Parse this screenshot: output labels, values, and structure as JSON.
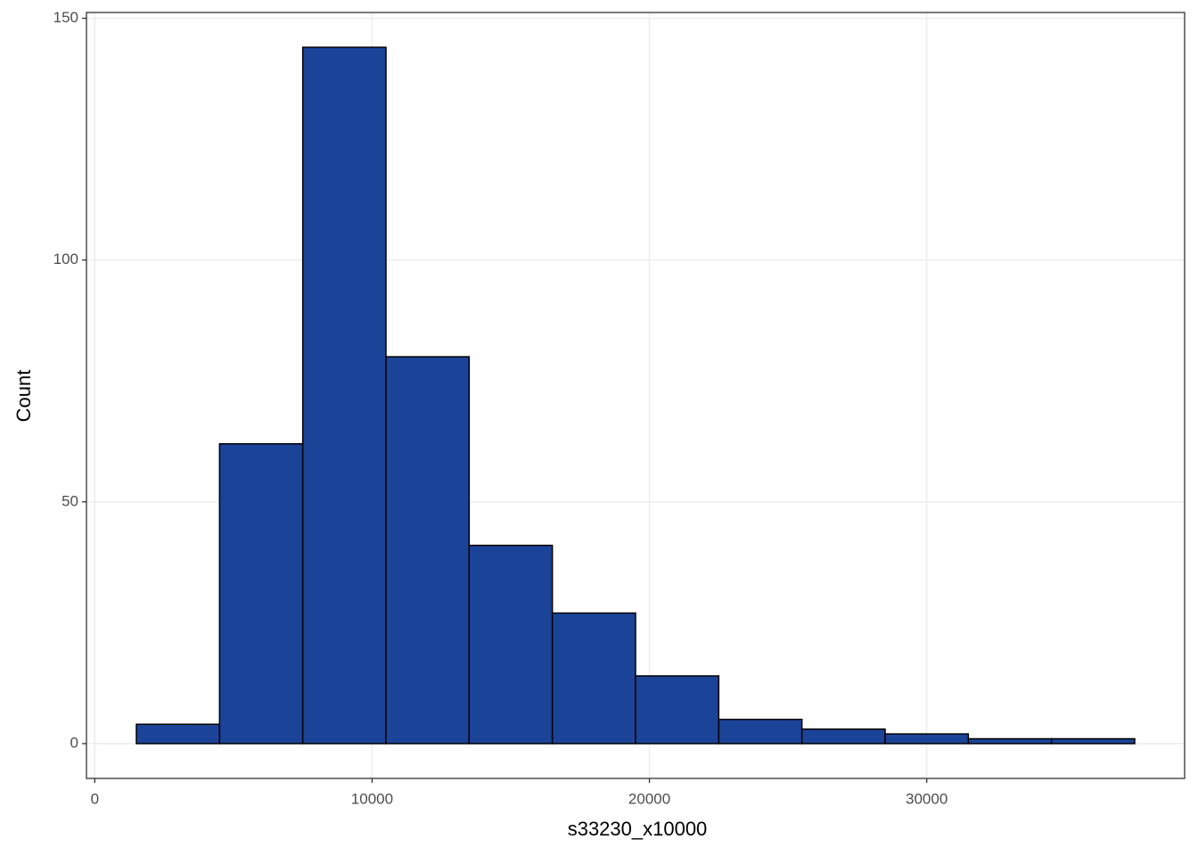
{
  "chart_data": {
    "type": "histogram",
    "x_label": "s33230_x10000",
    "y_label": "Count",
    "bins": [
      1500,
      4500,
      7500,
      10500,
      13500,
      16500,
      19500,
      22500,
      25500,
      28500,
      31500,
      34500,
      37500
    ],
    "values": [
      4,
      62,
      144,
      80,
      41,
      27,
      14,
      5,
      3,
      2,
      1,
      1
    ],
    "color": "#1b4499",
    "edge_color": "#000000",
    "xlim": [
      -300,
      39300
    ],
    "xticks": [
      0,
      10000,
      20000,
      30000
    ],
    "ylim": [
      -7.2,
      151.2
    ],
    "yticks": [
      0,
      50,
      100,
      150
    ],
    "grid": true
  }
}
